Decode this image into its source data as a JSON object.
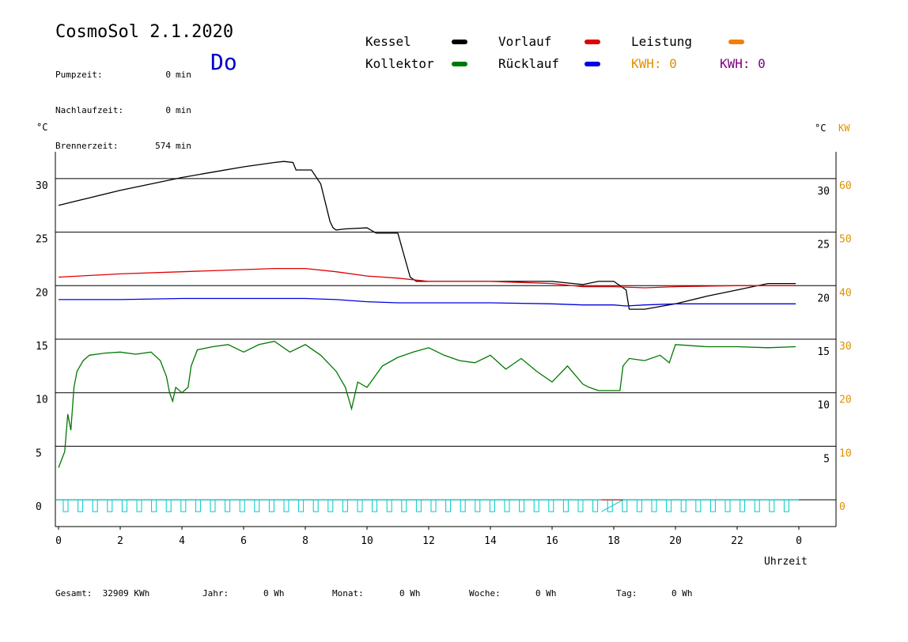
{
  "header": {
    "title": "CosmoSol 2.1.2020",
    "day": "Do",
    "stats": [
      {
        "label": "Pumpzeit:",
        "value": "0",
        "unit": "min"
      },
      {
        "label": "Nachlaufzeit:",
        "value": "0",
        "unit": "min"
      },
      {
        "label": "Brennerzeit:",
        "value": "574",
        "unit": "min"
      }
    ]
  },
  "legend": {
    "kessel": "Kessel",
    "kollektor": "Kollektor",
    "vorlauf": "Vorlauf",
    "ruecklauf": "Rücklauf",
    "leistung": "Leistung",
    "kwh_left": "KWH: 0",
    "kwh_right": "KWH: 0"
  },
  "footer": {
    "gesamt": "Gesamt:  32909 KWh",
    "jahr_label": "Jahr:",
    "jahr_value": "0 Wh",
    "monat_label": "Monat:",
    "monat_value": "0 Wh",
    "woche_label": "Woche:",
    "woche_value": "0 Wh",
    "tag_label": "Tag:",
    "tag_value": "0 Wh"
  },
  "colors": {
    "kessel": "#000000",
    "kollektor": "#007800",
    "vorlauf": "#e00000",
    "ruecklauf": "#0000e0",
    "leistung": "#f08000",
    "pump": "#00c8c8",
    "kw_axis": "#e09000",
    "kwh_purple": "#800080"
  },
  "chart_data": {
    "type": "line",
    "xlabel": "Uhrzeit",
    "ylabel_left": "°C",
    "ylabel_right": "°C",
    "ylabel_right2": "KW",
    "xlim": [
      0,
      24
    ],
    "ylim": [
      -2.5,
      32.5
    ],
    "grid": true,
    "x_ticks": [
      "0",
      "2",
      "4",
      "6",
      "8",
      "10",
      "12",
      "14",
      "16",
      "18",
      "20",
      "22",
      "0"
    ],
    "y_ticks_left": [
      "0",
      "5",
      "10",
      "15",
      "20",
      "25",
      "30"
    ],
    "y_ticks_right": [
      "5",
      "10",
      "15",
      "20",
      "25",
      "30"
    ],
    "y_ticks_right_kw": [
      "0",
      "10",
      "20",
      "30",
      "40",
      "50",
      "60"
    ],
    "series": [
      {
        "name": "Kessel",
        "x": [
          0,
          1,
          2,
          3,
          4,
          5,
          6,
          7,
          7.3,
          7.6,
          7.7,
          8.2,
          8.5,
          8.8,
          8.9,
          9.0,
          9.3,
          10,
          10.3,
          10.5,
          11,
          11.4,
          11.6,
          12,
          14,
          16,
          17,
          17.5,
          18.0,
          18.4,
          18.5,
          19,
          20,
          21,
          22,
          22.5,
          23,
          23.9
        ],
        "y": [
          27.5,
          28.2,
          28.9,
          29.5,
          30.1,
          30.6,
          31.1,
          31.5,
          31.6,
          31.5,
          30.8,
          30.8,
          29.5,
          26.0,
          25.4,
          25.2,
          25.3,
          25.4,
          24.9,
          24.9,
          24.9,
          20.8,
          20.4,
          20.4,
          20.4,
          20.4,
          20.1,
          20.4,
          20.4,
          19.6,
          17.8,
          17.8,
          18.3,
          19.0,
          19.6,
          19.9,
          20.2,
          20.2
        ]
      },
      {
        "name": "Vorlauf",
        "x": [
          0,
          2,
          4,
          6,
          7,
          8,
          9,
          10,
          11,
          12,
          14,
          16,
          17,
          18,
          19,
          20,
          22,
          23.9
        ],
        "y": [
          20.8,
          21.1,
          21.3,
          21.5,
          21.6,
          21.6,
          21.3,
          20.9,
          20.7,
          20.4,
          20.4,
          20.2,
          19.9,
          19.9,
          19.8,
          19.9,
          20.0,
          20.0
        ]
      },
      {
        "name": "Rücklauf",
        "x": [
          0,
          2,
          4,
          6,
          8,
          9,
          10,
          11,
          12,
          14,
          16,
          17,
          18,
          18.4,
          19,
          20,
          22,
          23.9
        ],
        "y": [
          18.7,
          18.7,
          18.8,
          18.8,
          18.8,
          18.7,
          18.5,
          18.4,
          18.4,
          18.4,
          18.3,
          18.2,
          18.2,
          18.1,
          18.2,
          18.3,
          18.3,
          18.3
        ]
      },
      {
        "name": "Kollektor",
        "x": [
          0,
          0.2,
          0.3,
          0.4,
          0.5,
          0.6,
          0.8,
          1.0,
          1.5,
          2,
          2.5,
          3,
          3.3,
          3.5,
          3.6,
          3.7,
          3.8,
          4.0,
          4.2,
          4.3,
          4.5,
          5,
          5.5,
          6,
          6.5,
          7,
          7.5,
          8,
          8.5,
          9,
          9.3,
          9.5,
          9.7,
          10,
          10.5,
          11,
          11.5,
          12,
          12.5,
          13,
          13.5,
          14,
          14.5,
          15,
          15.5,
          16,
          16.5,
          17,
          17.2,
          17.5,
          18.0,
          18.2,
          18.3,
          18.5,
          19,
          19.5,
          19.8,
          20,
          21,
          22,
          23,
          23.9
        ],
        "y": [
          3.0,
          4.5,
          8.0,
          6.5,
          10.5,
          12.0,
          13.0,
          13.5,
          13.7,
          13.8,
          13.6,
          13.8,
          13.0,
          11.5,
          10.0,
          9.2,
          10.5,
          10.0,
          10.5,
          12.5,
          14.0,
          14.3,
          14.5,
          13.8,
          14.5,
          14.8,
          13.8,
          14.5,
          13.5,
          12.0,
          10.5,
          8.5,
          11.0,
          10.5,
          12.5,
          13.3,
          13.8,
          14.2,
          13.5,
          13.0,
          12.8,
          13.5,
          12.2,
          13.2,
          12.0,
          11.0,
          12.5,
          10.8,
          10.5,
          10.2,
          10.2,
          10.2,
          12.5,
          13.2,
          13.0,
          13.5,
          12.8,
          14.5,
          14.3,
          14.3,
          14.2,
          14.3
        ]
      }
    ]
  }
}
